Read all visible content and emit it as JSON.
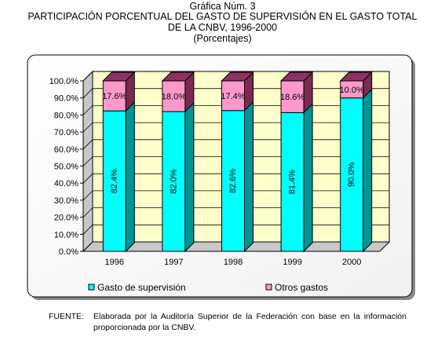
{
  "header": {
    "figure_label": "Gráfica Núm. 3",
    "title_line1": "PARTICIPACIÓN PORCENTUAL DEL GASTO DE SUPERVISIÓN EN EL GASTO TOTAL",
    "title_line2": "DE LA CNBV, 1996-2000",
    "title_line3": "(Porcentajes)"
  },
  "chart_data": {
    "type": "bar",
    "stacked": true,
    "three_d": true,
    "categories": [
      "1996",
      "1997",
      "1998",
      "1999",
      "2000"
    ],
    "series": [
      {
        "name": "Gasto de supervisión",
        "values": [
          82.4,
          82.0,
          82.6,
          81.4,
          90.0
        ],
        "labels": [
          "82.4%",
          "82.0%",
          "82.6%",
          "81.4%",
          "90.0%"
        ],
        "color": "#00ffff",
        "side_color": "#009494",
        "top_color": "#00c4c4"
      },
      {
        "name": "Otros gastos",
        "values": [
          17.6,
          18.0,
          17.4,
          18.6,
          10.0
        ],
        "labels": [
          "17.6%",
          "18.0%",
          "17.4%",
          "18.6%",
          "10.0%"
        ],
        "color": "#ff99cc",
        "side_color": "#7a2a52",
        "top_color": "#8a3360"
      }
    ],
    "ylim": [
      0,
      100
    ],
    "yticks": [
      0,
      10,
      20,
      30,
      40,
      50,
      60,
      70,
      80,
      90,
      100
    ],
    "ytick_labels": [
      "0.0%",
      "10.0%",
      "20.0%",
      "30.0%",
      "40.0%",
      "50.0%",
      "60.0%",
      "70.0%",
      "80.0%",
      "90.0%",
      "100.0%"
    ],
    "grid": true,
    "legend_position": "bottom",
    "wall_color": "#ffffcc"
  },
  "footer": {
    "label": "FUENTE:",
    "text": "Elaborada por la Auditoría Superior de la Federación con base en la información proporcionada por la CNBV."
  }
}
